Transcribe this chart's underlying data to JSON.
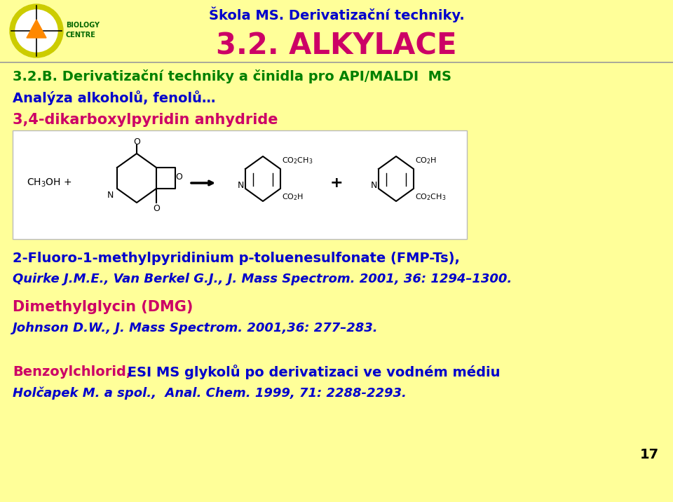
{
  "bg_color": "#FFFF99",
  "header_text": "Škola MS. Derivatizační techniky.",
  "header_color": "#0000CC",
  "title_text": "3.2. ALKYLACE",
  "title_color": "#CC0066",
  "line1_bold": "3.2.B. Derivatizační techniky a činidla pro API/MALDI  MS",
  "line1_color": "#008000",
  "line2_text": "Analýza alkoholů, fenolů…",
  "line2_color": "#0000CC",
  "line3_text": "3,4-dikarboxylpyridin anhydride",
  "line3_color": "#CC0066",
  "line4_text": "2-Fluoro-1-methylpyridinium p-toluenesulfonate (FMP-Ts),",
  "line4_color": "#0000CC",
  "line5_text": "Quirke J.M.E., Van Berkel G.J., J. Mass Spectrom. 2001, 36: 1294–1300.",
  "line5_color": "#0000CC",
  "line6_text": "Dimethylglycin (DMG)",
  "line6_color": "#CC0066",
  "line7_text": "Johnson D.W., J. Mass Spectrom. 2001,36: 277–283.",
  "line7_color": "#0000CC",
  "line8_part1": "Benzoylchlorid,",
  "line8_part1_color": "#CC0066",
  "line8_part2": " ESI MS glykolů po derivatizaci ve vodném médiu",
  "line8_part2_color": "#0000CC",
  "line9_text": "Holčapek M. a spol.,  Anal. Chem. 1999, 71: 2288-2293.",
  "line9_color": "#0000CC",
  "page_number": "17",
  "page_number_color": "#000000",
  "chem_box_color": "#FFFFFF",
  "chem_box_edge_color": "#BBBBBB"
}
